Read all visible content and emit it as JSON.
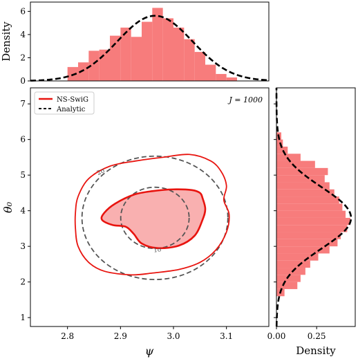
{
  "chart_data": [
    {
      "panel": "top-marginal",
      "type": "bar",
      "xlim": [
        2.73,
        3.18
      ],
      "ylim": [
        0,
        6.8
      ],
      "ylabel": "Density",
      "yticks": [
        "0",
        "2",
        "4",
        "6"
      ],
      "histogram": {
        "bin_edges": [
          2.8,
          2.82,
          2.84,
          2.86,
          2.88,
          2.9,
          2.92,
          2.94,
          2.96,
          2.98,
          3.0,
          3.02,
          3.04,
          3.06,
          3.08,
          3.1,
          3.12
        ],
        "heights": [
          1.2,
          1.6,
          2.6,
          2.7,
          3.9,
          4.6,
          3.8,
          5.1,
          6.3,
          5.4,
          4.6,
          3.6,
          2.5,
          1.4,
          0.6,
          0.3
        ],
        "color": "#f77c7c"
      },
      "analytic": {
        "mean": 2.965,
        "sigma": 0.071,
        "color": "#000000"
      }
    },
    {
      "panel": "joint",
      "type": "contour",
      "xlim": [
        2.73,
        3.18
      ],
      "ylim": [
        0.75,
        7.45
      ],
      "xlabel": "ψ",
      "ylabel": "θ₀",
      "xticks": [
        "2.8",
        "2.9",
        "3.0",
        "3.1"
      ],
      "yticks": [
        "1",
        "2",
        "3",
        "4",
        "5",
        "6",
        "7"
      ],
      "annotation": "J = 1000",
      "legend": {
        "position": "top-left",
        "entries": [
          "NS-SwiG",
          "Analytic"
        ]
      },
      "ns_swig": {
        "color": "#e8140f",
        "fill": "#f9b0b0",
        "contour_1sigma": [
          [
            2.925,
            4.45
          ],
          [
            2.96,
            4.55
          ],
          [
            3.0,
            4.6
          ],
          [
            3.035,
            4.58
          ],
          [
            3.05,
            4.5
          ],
          [
            3.055,
            4.35
          ],
          [
            3.06,
            4.05
          ],
          [
            3.055,
            3.75
          ],
          [
            3.04,
            3.3
          ],
          [
            3.01,
            3.02
          ],
          [
            2.97,
            2.95
          ],
          [
            2.94,
            3.08
          ],
          [
            2.925,
            3.35
          ],
          [
            2.91,
            3.55
          ],
          [
            2.885,
            3.6
          ],
          [
            2.865,
            3.75
          ],
          [
            2.87,
            3.95
          ],
          [
            2.89,
            4.2
          ],
          [
            2.925,
            4.45
          ]
        ],
        "contour_2sigma": [
          [
            2.93,
            5.4
          ],
          [
            2.98,
            5.5
          ],
          [
            3.03,
            5.58
          ],
          [
            3.07,
            5.4
          ],
          [
            3.09,
            5.1
          ],
          [
            3.1,
            4.7
          ],
          [
            3.095,
            4.3
          ],
          [
            3.105,
            3.9
          ],
          [
            3.1,
            3.4
          ],
          [
            3.08,
            2.9
          ],
          [
            3.05,
            2.55
          ],
          [
            3.01,
            2.35
          ],
          [
            2.96,
            2.25
          ],
          [
            2.92,
            2.2
          ],
          [
            2.87,
            2.3
          ],
          [
            2.84,
            2.55
          ],
          [
            2.82,
            3.0
          ],
          [
            2.815,
            3.5
          ],
          [
            2.815,
            3.95
          ],
          [
            2.82,
            4.4
          ],
          [
            2.84,
            4.9
          ],
          [
            2.88,
            5.25
          ],
          [
            2.93,
            5.4
          ]
        ]
      },
      "analytic": {
        "color": "#555555",
        "center": [
          2.965,
          3.8
        ],
        "sigma": [
          0.071,
          0.86
        ],
        "contour_labels": [
          "1σ",
          "2σ"
        ]
      }
    },
    {
      "panel": "right-marginal",
      "type": "bar",
      "orientation": "horizontal",
      "xlim": [
        0,
        0.49
      ],
      "ylim": [
        0.75,
        7.45
      ],
      "xlabel": "Density",
      "xticks": [
        "0.00",
        "0.25"
      ],
      "histogram": {
        "bin_edges": [
          1.6,
          1.8,
          2.0,
          2.2,
          2.4,
          2.6,
          2.8,
          3.0,
          3.2,
          3.4,
          3.6,
          3.8,
          4.0,
          4.2,
          4.4,
          4.6,
          4.8,
          5.0,
          5.2,
          5.4,
          5.6,
          5.8,
          6.0,
          6.2
        ],
        "heights": [
          0.05,
          0.13,
          0.15,
          0.18,
          0.21,
          0.26,
          0.33,
          0.38,
          0.4,
          0.44,
          0.46,
          0.43,
          0.41,
          0.39,
          0.36,
          0.33,
          0.3,
          0.32,
          0.24,
          0.15,
          0.07,
          0.04,
          0.03
        ],
        "color": "#f77c7c"
      },
      "analytic": {
        "mean": 3.8,
        "sigma": 0.86,
        "color": "#000000"
      }
    }
  ]
}
